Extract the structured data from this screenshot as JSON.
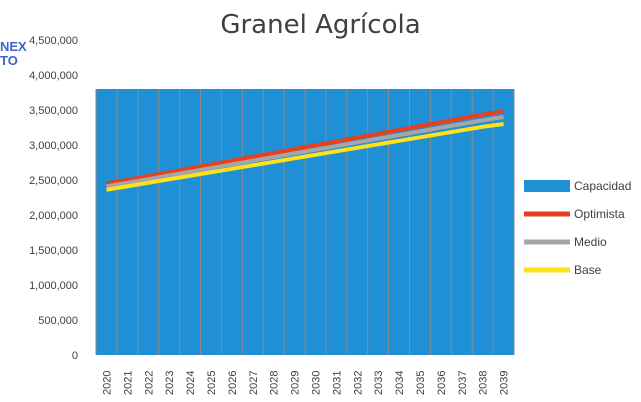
{
  "chart_data": {
    "type": "area",
    "title": "Granel Agrícola",
    "x": [
      "2020",
      "2021",
      "2022",
      "2023",
      "2024",
      "2025",
      "2026",
      "2027",
      "2028",
      "2029",
      "2030",
      "2031",
      "2032",
      "2033",
      "2034",
      "2035",
      "2036",
      "2037",
      "2038",
      "2039"
    ],
    "ylim": [
      0,
      4500000
    ],
    "yticks": [
      "0",
      "500,000",
      "1,000,000",
      "1,500,000",
      "2,000,000",
      "2,500,000",
      "3,000,000",
      "3,500,000",
      "4,000,000",
      "4,500,000"
    ],
    "series": [
      {
        "name": "Capacidad",
        "type": "area",
        "color": "#1f8fd6",
        "values": [
          3800000,
          3800000,
          3800000,
          3800000,
          3800000,
          3800000,
          3800000,
          3800000,
          3800000,
          3800000,
          3800000,
          3800000,
          3800000,
          3800000,
          3800000,
          3800000,
          3800000,
          3800000,
          3800000,
          3800000
        ]
      },
      {
        "name": "Optimista",
        "type": "line",
        "color": "#e8401c",
        "values": [
          2450000,
          2500000,
          2555000,
          2610000,
          2665000,
          2720000,
          2775000,
          2830000,
          2885000,
          2940000,
          2995000,
          3050000,
          3105000,
          3160000,
          3215000,
          3270000,
          3325000,
          3380000,
          3435000,
          3480000
        ]
      },
      {
        "name": "Medio",
        "type": "line",
        "color": "#a6a6a6",
        "values": [
          2410000,
          2460000,
          2512000,
          2565000,
          2618000,
          2670000,
          2722000,
          2775000,
          2828000,
          2880000,
          2932000,
          2985000,
          3038000,
          3090000,
          3142000,
          3195000,
          3248000,
          3300000,
          3352000,
          3400000
        ]
      },
      {
        "name": "Base",
        "type": "line",
        "color": "#ffe31a",
        "values": [
          2360000,
          2410000,
          2460000,
          2510000,
          2560000,
          2610000,
          2660000,
          2710000,
          2760000,
          2810000,
          2860000,
          2910000,
          2960000,
          3010000,
          3060000,
          3110000,
          3160000,
          3210000,
          3260000,
          3300000
        ]
      }
    ],
    "legend_position": "right",
    "grid": false
  },
  "stray_text": {
    "line1": "NEX",
    "line2": "TO"
  }
}
